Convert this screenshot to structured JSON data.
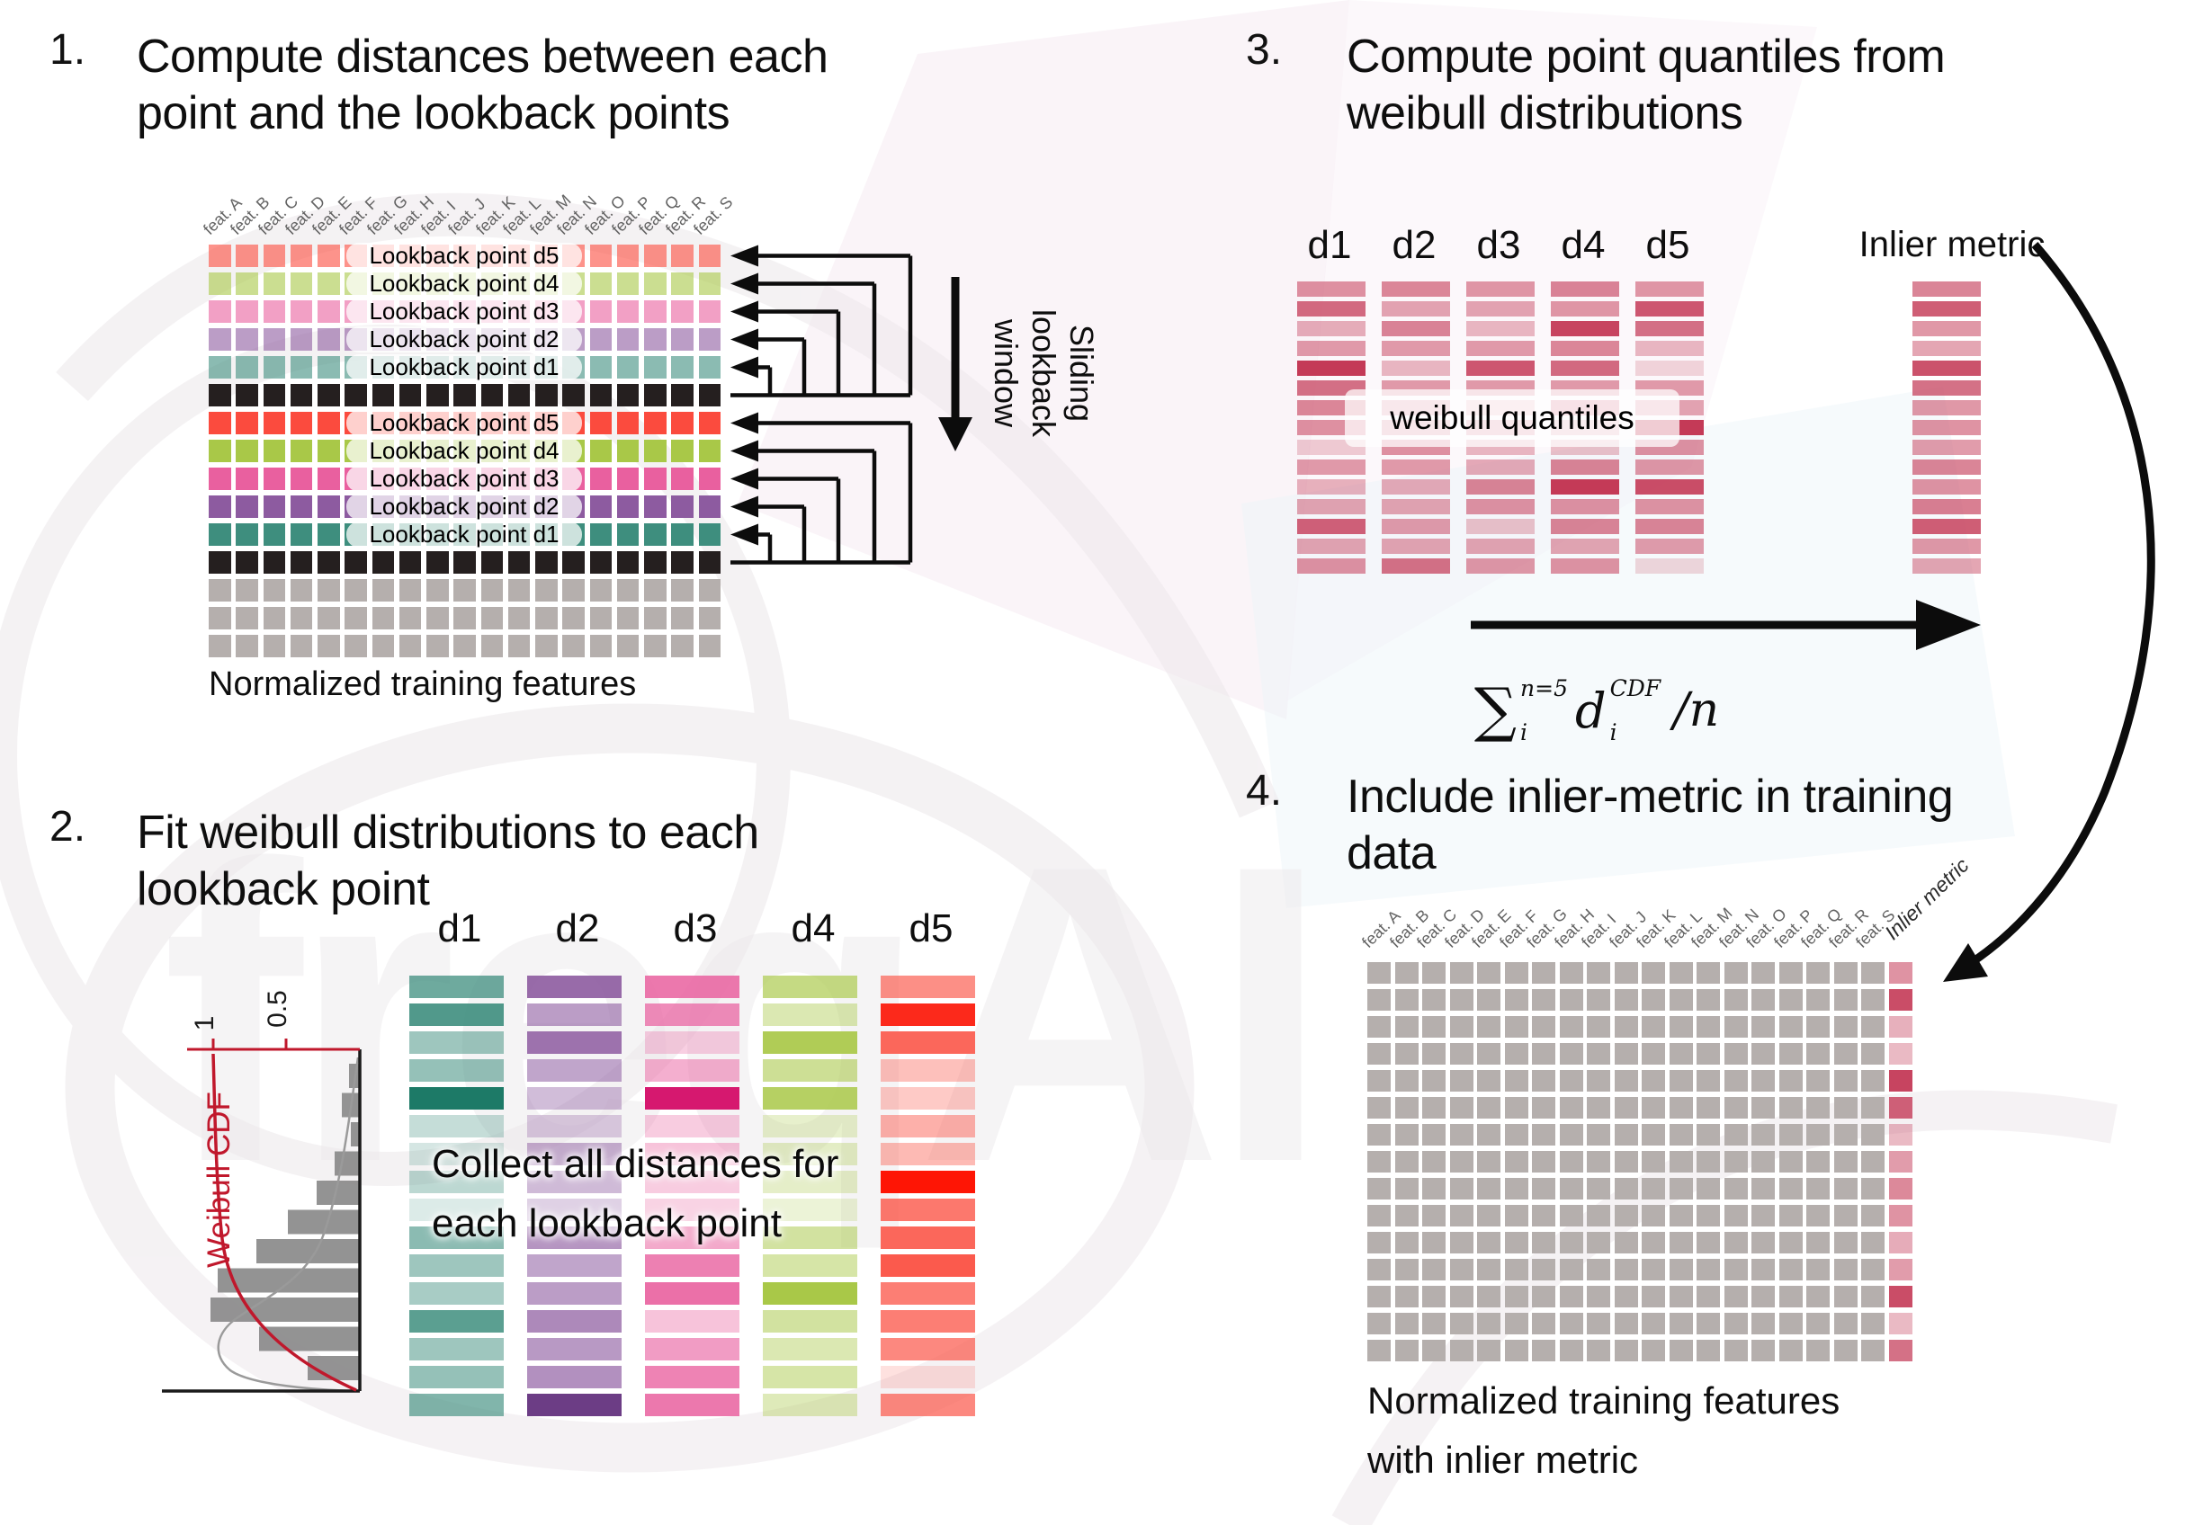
{
  "colors": {
    "d1": "#3e8e7e",
    "d2": "#8d5ba0",
    "d3": "#e9609f",
    "d4": "#a9c848",
    "d5": "#fb4b3e",
    "black_row": "#251f1f",
    "gray_cell": "#b5afad",
    "crimson": "#c43a57",
    "cdf_red": "#c0182c",
    "hist_gray": "#8a8a8a",
    "label_gray": "#636363"
  },
  "s1": {
    "number": "1.",
    "title_lines": [
      "Compute distances between each",
      "point and the lookback points"
    ],
    "features": [
      "feat. A",
      "feat. B",
      "feat. C",
      "feat. D",
      "feat. E",
      "feat. F",
      "feat. G",
      "feat. H",
      "feat. I",
      "feat. J",
      "feat. K",
      "feat. L",
      "feat. M",
      "feat. N",
      "feat. O",
      "feat. P",
      "feat. Q",
      "feat. R",
      "feat. S"
    ],
    "rows": [
      {
        "kind": "lookback",
        "key": "d5",
        "label": "Lookback point d5",
        "faded": true
      },
      {
        "kind": "lookback",
        "key": "d4",
        "label": "Lookback point d4",
        "faded": true
      },
      {
        "kind": "lookback",
        "key": "d3",
        "label": "Lookback point d3",
        "faded": true
      },
      {
        "kind": "lookback",
        "key": "d2",
        "label": "Lookback point d2",
        "faded": true
      },
      {
        "kind": "lookback",
        "key": "d1",
        "label": "Lookback point d1",
        "faded": true
      },
      {
        "kind": "current"
      },
      {
        "kind": "lookback",
        "key": "d5",
        "label": "Lookback point d5",
        "faded": false
      },
      {
        "kind": "lookback",
        "key": "d4",
        "label": "Lookback point d4",
        "faded": false
      },
      {
        "kind": "lookback",
        "key": "d3",
        "label": "Lookback point d3",
        "faded": false
      },
      {
        "kind": "lookback",
        "key": "d2",
        "label": "Lookback point d2",
        "faded": false
      },
      {
        "kind": "lookback",
        "key": "d1",
        "label": "Lookback point d1",
        "faded": false
      },
      {
        "kind": "current"
      },
      {
        "kind": "plain"
      },
      {
        "kind": "plain"
      },
      {
        "kind": "plain"
      }
    ],
    "caption": "Normalized training features",
    "window_label_lines": [
      "Sliding",
      "lookback",
      "window"
    ]
  },
  "s2": {
    "number": "2.",
    "title_lines": [
      "Fit weibull distributions to each",
      "lookback point"
    ],
    "plot": {
      "cdf_label": "Weibull CDF",
      "tick_labels": [
        "1",
        "0.5"
      ],
      "hist": [
        12,
        20,
        10,
        28,
        48,
        80,
        115,
        158,
        166,
        112,
        58
      ]
    },
    "headers": [
      "d1",
      "d2",
      "d3",
      "d4",
      "d5"
    ],
    "overlay_lines": [
      "Collect all distances for",
      "each lookback point"
    ],
    "columns": [
      {
        "name": "d1",
        "color": "#3e8e7e",
        "opacities": [
          0.75,
          0.9,
          0.5,
          0.55,
          1,
          0.3,
          0.22,
          0.35,
          0.18,
          0.6,
          0.5,
          0.45,
          0.85,
          0.5,
          0.55,
          0.65
        ],
        "overrides": {
          "4": "#1d7a67"
        }
      },
      {
        "name": "d2",
        "color": "#8d5ba0",
        "opacities": [
          0.9,
          0.6,
          0.85,
          0.55,
          0.4,
          0.3,
          0.5,
          0.42,
          0.28,
          0.65,
          0.55,
          0.6,
          0.72,
          0.62,
          0.68,
          1
        ],
        "overrides": {
          "15": "#6c3d85"
        }
      },
      {
        "name": "d3",
        "color": "#e9609f",
        "opacities": [
          0.85,
          0.72,
          0.3,
          0.5,
          1,
          0.32,
          0.38,
          0.32,
          0.28,
          0.55,
          0.8,
          0.9,
          0.38,
          0.62,
          0.78,
          0.85
        ],
        "overrides": {
          "4": "#d6186f"
        }
      },
      {
        "name": "d4",
        "color": "#a9c848",
        "opacities": [
          0.68,
          0.42,
          0.92,
          0.58,
          0.85,
          0.28,
          0.32,
          0.3,
          0.22,
          0.52,
          0.48,
          1,
          0.52,
          0.42,
          0.48,
          0.38
        ],
        "overrides": {}
      },
      {
        "name": "d5",
        "color": "#fb5a4d",
        "opacities": [
          0.68,
          1,
          0.92,
          0.38,
          0.32,
          0.48,
          0.42,
          1,
          0.82,
          0.92,
          1,
          0.78,
          0.78,
          0.72,
          0.18,
          0.72
        ],
        "overrides": {
          "1": "#fc291b",
          "7": "#fe1505"
        }
      }
    ]
  },
  "s3": {
    "number": "3.",
    "title_lines": [
      "Compute point quantiles from",
      "weibull distributions"
    ],
    "headers": [
      "d1",
      "d2",
      "d3",
      "d4",
      "d5"
    ],
    "inlier_label": "Inlier metric",
    "pill_label": "weibull quantiles",
    "columns": [
      [
        0.55,
        0.75,
        0.4,
        0.5,
        1,
        0.72,
        0.6,
        0.55,
        0.25,
        0.5,
        0.38,
        0.45,
        0.8,
        0.45,
        0.55
      ],
      [
        0.6,
        0.45,
        0.62,
        0.5,
        0.35,
        0.5,
        0.42,
        0.48,
        0.55,
        0.5,
        0.42,
        0.45,
        0.5,
        0.45,
        0.72
      ],
      [
        0.52,
        0.45,
        0.35,
        0.5,
        0.85,
        0.5,
        0.28,
        0.45,
        0.35,
        0.42,
        0.62,
        0.55,
        0.3,
        0.45,
        0.52
      ],
      [
        0.62,
        0.52,
        0.95,
        0.6,
        0.75,
        0.5,
        0.55,
        0.35,
        0.3,
        0.62,
        1,
        0.55,
        0.62,
        0.45,
        0.55
      ],
      [
        0.52,
        0.85,
        0.72,
        0.35,
        0.2,
        0.5,
        0.45,
        1,
        0.55,
        0.52,
        0.9,
        0.55,
        0.62,
        0.5,
        0.2
      ]
    ],
    "inlier_column": [
      0.62,
      0.82,
      0.52,
      0.45,
      0.88,
      0.72,
      0.52,
      0.55,
      0.5,
      0.62,
      0.55,
      0.65,
      0.82,
      0.52,
      0.45
    ],
    "formula": {
      "sum": "∑",
      "sum_sup": "n=5",
      "sum_sub": "i",
      "var": "d",
      "var_sup": "CDF",
      "var_sub": "i",
      "tail": "/n"
    }
  },
  "s4": {
    "number": "4.",
    "title_lines": [
      "Include inlier-metric in training",
      "data"
    ],
    "features": [
      "feat. A",
      "feat. B",
      "feat. C",
      "feat. D",
      "feat. E",
      "feat. F",
      "feat. G",
      "feat. H",
      "feat. I",
      "feat. J",
      "feat. K",
      "feat. L",
      "feat. M",
      "feat. N",
      "feat. O",
      "feat. P",
      "feat. Q",
      "feat. R",
      "feat. S"
    ],
    "inlier_feature": "Inlier metric",
    "caption_lines": [
      "Normalized training features",
      "with inlier metric"
    ],
    "grid": {
      "rows": 15,
      "cols": 19
    },
    "inlier_values": [
      0.55,
      0.9,
      0.4,
      0.35,
      0.95,
      0.8,
      0.35,
      0.5,
      0.6,
      0.55,
      0.42,
      0.5,
      0.9,
      0.35,
      0.72
    ]
  },
  "watermark": {
    "text": "freqAI"
  }
}
